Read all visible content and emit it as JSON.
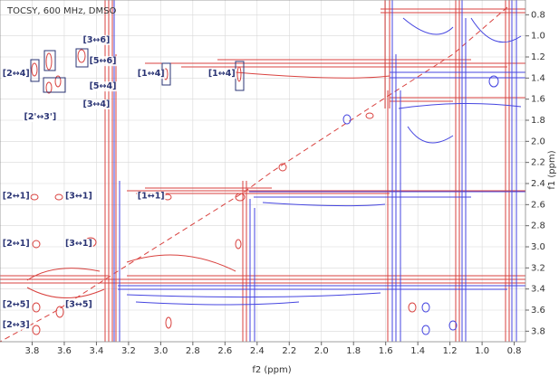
{
  "chart_data": {
    "type": "contour",
    "title": "TOCSY, 600 MHz, DMSO",
    "x_label": "f2 (ppm)",
    "y_label": "f1 (ppm)",
    "xlim": [
      4.0,
      0.73
    ],
    "ylim": [
      0.66,
      3.9
    ],
    "xticks": [
      3.8,
      3.6,
      3.4,
      3.2,
      {
        "value": 3,
        "label": "3.0"
      },
      2.8,
      2.6,
      2.4,
      2.2,
      {
        "value": 2,
        "label": "2.0"
      },
      1.8,
      1.6,
      1.4,
      1.2,
      {
        "value": 1,
        "label": "1.0"
      },
      0.8
    ],
    "yticks": [
      0.8,
      {
        "value": 1,
        "label": "1.0"
      },
      1.2,
      1.4,
      1.6,
      1.8,
      {
        "value": 2,
        "label": "2.0"
      },
      2.2,
      2.4,
      2.6,
      2.8,
      {
        "value": 3,
        "label": "3.0"
      },
      3.2,
      3.4,
      3.6,
      3.8
    ],
    "grid": true,
    "annotations": [
      {
        "text": "[2↔4]",
        "x": 3.9,
        "y": 1.36
      },
      {
        "text": "[3↔6]",
        "x": 3.4,
        "y": 1.04
      },
      {
        "text": "[5↔6]",
        "x": 3.36,
        "y": 1.24
      },
      {
        "text": "[5↔4]",
        "x": 3.36,
        "y": 1.48
      },
      {
        "text": "[3↔4]",
        "x": 3.4,
        "y": 1.65
      },
      {
        "text": "[2'↔3']",
        "x": 3.75,
        "y": 1.77
      },
      {
        "text": "[1↔4]",
        "x": 3.06,
        "y": 1.36
      },
      {
        "text": "[1↔4]",
        "x": 2.62,
        "y": 1.36
      },
      {
        "text": "[2↔1]",
        "x": 3.9,
        "y": 2.52
      },
      {
        "text": "[3↔1]",
        "x": 3.51,
        "y": 2.52
      },
      {
        "text": "[1↔1]",
        "x": 3.06,
        "y": 2.52
      },
      {
        "text": "[2↔1]",
        "x": 3.9,
        "y": 2.97
      },
      {
        "text": "[3↔1]",
        "x": 3.51,
        "y": 2.97
      },
      {
        "text": "[2↔5]",
        "x": 3.9,
        "y": 3.55
      },
      {
        "text": "[3↔5]",
        "x": 3.51,
        "y": 3.55
      },
      {
        "text": "[2↔3]",
        "x": 3.9,
        "y": 3.74
      }
    ]
  }
}
